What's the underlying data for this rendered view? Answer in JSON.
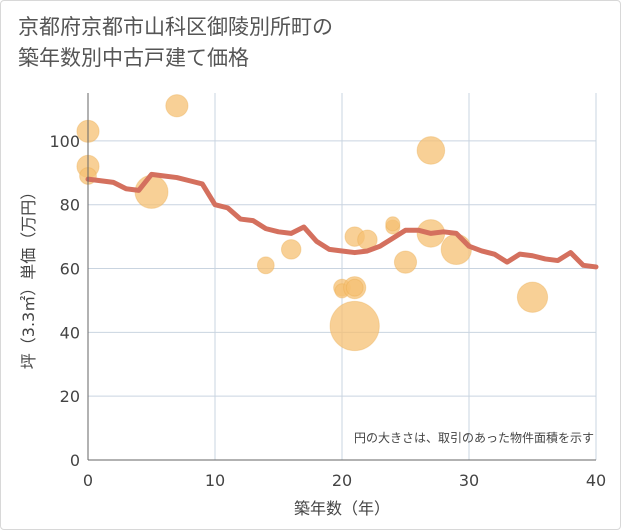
{
  "title_line1": "京都府京都市山科区御陵別所町の",
  "title_line2": "築年数別中古戸建て価格",
  "chart_data": {
    "type": "scatter",
    "title": "京都府京都市山科区御陵別所町の築年数別中古戸建て価格",
    "xlabel": "築年数（年）",
    "ylabel": "坪（3.3㎡）単価（万円）",
    "xlim": [
      0,
      40
    ],
    "ylim": [
      0,
      115
    ],
    "xticks": [
      0,
      10,
      20,
      30,
      40
    ],
    "yticks": [
      0,
      20,
      40,
      60,
      80,
      100
    ],
    "grid": true,
    "note": "円の大きさは、取引のあった物件面積を示す",
    "colors": {
      "line": "#d4705e",
      "bubble": "#f5c073",
      "bubble_stroke": "#e8a94a",
      "grid": "#c9d4e0"
    },
    "scatter": [
      {
        "x": 0,
        "y": 103,
        "size": 3
      },
      {
        "x": 0,
        "y": 92,
        "size": 3
      },
      {
        "x": 0,
        "y": 89,
        "size": 2
      },
      {
        "x": 5,
        "y": 84,
        "size": 5
      },
      {
        "x": 7,
        "y": 111,
        "size": 3
      },
      {
        "x": 14,
        "y": 61,
        "size": 2
      },
      {
        "x": 16,
        "y": 66,
        "size": 2.5
      },
      {
        "x": 20,
        "y": 54,
        "size": 2
      },
      {
        "x": 20,
        "y": 53,
        "size": 1.5
      },
      {
        "x": 21,
        "y": 54,
        "size": 3
      },
      {
        "x": 21,
        "y": 54,
        "size": 2
      },
      {
        "x": 21,
        "y": 70,
        "size": 2.5
      },
      {
        "x": 21,
        "y": 42,
        "size": 8
      },
      {
        "x": 22,
        "y": 69,
        "size": 2.5
      },
      {
        "x": 24,
        "y": 73,
        "size": 1.5
      },
      {
        "x": 24,
        "y": 74,
        "size": 1.5
      },
      {
        "x": 25,
        "y": 62,
        "size": 3
      },
      {
        "x": 27,
        "y": 97,
        "size": 4
      },
      {
        "x": 27,
        "y": 71,
        "size": 4
      },
      {
        "x": 29,
        "y": 66,
        "size": 4.5
      },
      {
        "x": 35,
        "y": 51,
        "size": 4.5
      }
    ],
    "line": {
      "x": [
        0,
        1,
        2,
        3,
        4,
        5,
        6,
        7,
        8,
        9,
        10,
        11,
        12,
        13,
        14,
        15,
        16,
        17,
        18,
        19,
        20,
        21,
        22,
        23,
        24,
        25,
        26,
        27,
        28,
        29,
        30,
        31,
        32,
        33,
        34,
        35,
        36,
        37,
        38,
        39,
        40
      ],
      "y": [
        88,
        87.5,
        87,
        85,
        84.5,
        89.5,
        89,
        88.5,
        87.5,
        86.5,
        80,
        79,
        75.5,
        75,
        72.5,
        71.5,
        71,
        73,
        68.5,
        66,
        65.5,
        65,
        65.5,
        67,
        69.5,
        72,
        72,
        71,
        71.5,
        71,
        67,
        65.5,
        64.5,
        62,
        64.5,
        64,
        63,
        62.5,
        65,
        61,
        60.5
      ]
    }
  }
}
